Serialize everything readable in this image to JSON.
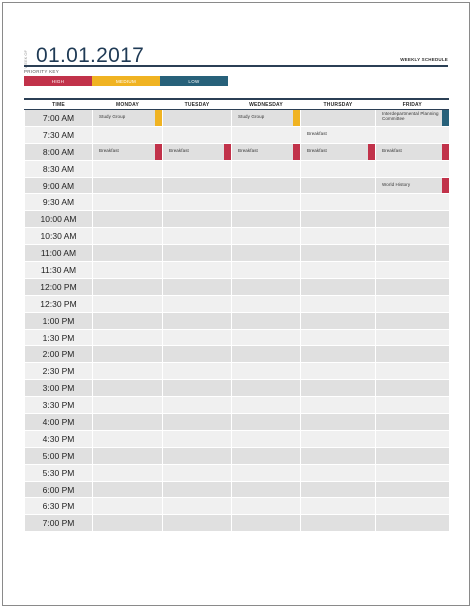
{
  "header": {
    "week_of": "WEEK OF",
    "date": "01.01.2017",
    "schedule_label": "WEEKLY SCHEDULE",
    "priority_key": "PRIORITY KEY"
  },
  "legend": [
    {
      "label": "HIGH",
      "color": "#c1324a"
    },
    {
      "label": "MEDIUM",
      "color": "#f0b322"
    },
    {
      "label": "LOW",
      "color": "#27617a"
    }
  ],
  "columns": [
    "TIME",
    "MONDAY",
    "TUESDAY",
    "WEDNESDAY",
    "THURSDAY",
    "FRIDAY"
  ],
  "times": [
    "7:00 AM",
    "7:30 AM",
    "8:00 AM",
    "8:30 AM",
    "9:00 AM",
    "9:30 AM",
    "10:00 AM",
    "10:30 AM",
    "11:00 AM",
    "11:30 AM",
    "12:00 PM",
    "12:30 PM",
    "1:00 PM",
    "1:30 PM",
    "2:00 PM",
    "2:30 PM",
    "3:00 PM",
    "3:30 PM",
    "4:00 PM",
    "4:30 PM",
    "5:00 PM",
    "5:30 PM",
    "6:00 PM",
    "6:30 PM",
    "7:00 PM"
  ],
  "events": [
    {
      "row": 0,
      "col": 1,
      "text": "Study Group",
      "priority": "MEDIUM"
    },
    {
      "row": 0,
      "col": 3,
      "text": "Study Group",
      "priority": "MEDIUM"
    },
    {
      "row": 0,
      "col": 5,
      "text": "Interdepartmental Planning Committee",
      "priority": "LOW"
    },
    {
      "row": 1,
      "col": 4,
      "text": "Breakfast",
      "priority": ""
    },
    {
      "row": 2,
      "col": 1,
      "text": "Breakfast",
      "priority": "HIGH"
    },
    {
      "row": 2,
      "col": 2,
      "text": "Breakfast",
      "priority": "HIGH"
    },
    {
      "row": 2,
      "col": 3,
      "text": "Breakfast",
      "priority": "HIGH"
    },
    {
      "row": 2,
      "col": 4,
      "text": "Breakfast",
      "priority": "HIGH"
    },
    {
      "row": 2,
      "col": 5,
      "text": "Breakfast",
      "priority": "HIGH"
    },
    {
      "row": 4,
      "col": 5,
      "text": "World History",
      "priority": "HIGH"
    }
  ]
}
